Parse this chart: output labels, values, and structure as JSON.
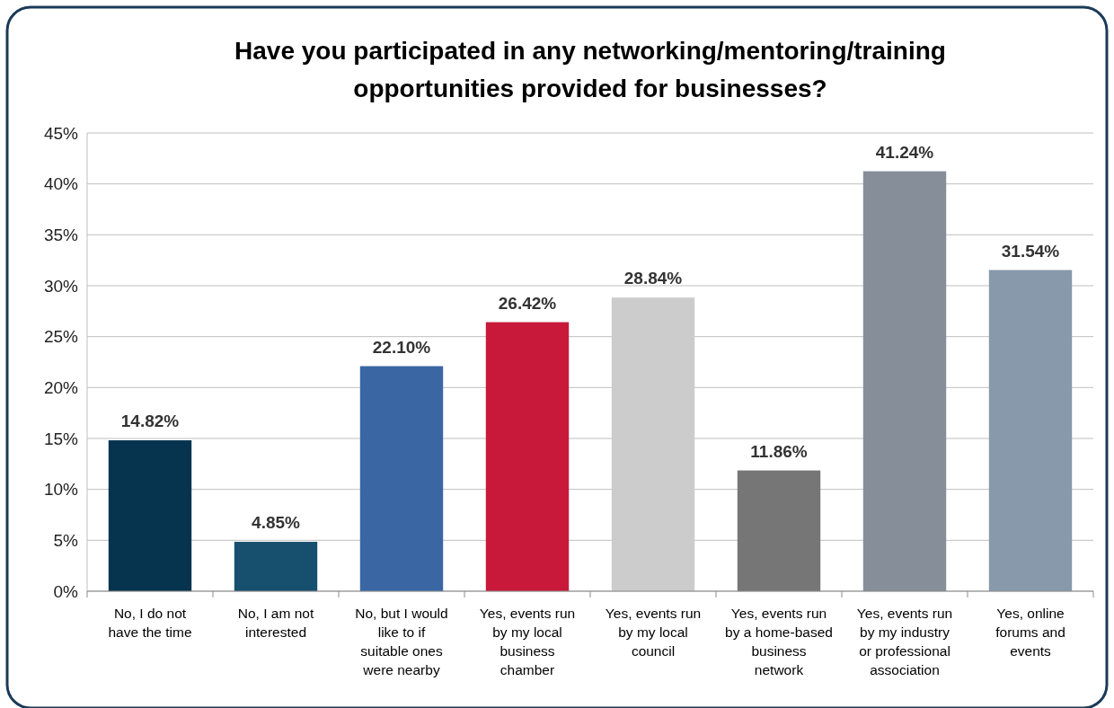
{
  "chart_data": {
    "type": "bar",
    "title": "Have you participated in any networking/mentoring/training opportunities provided for businesses?",
    "categories": [
      "No, I do not have the time",
      "No, I am not interested",
      "No, but I would like to if suitable ones were nearby",
      "Yes, events run by my local business chamber",
      "Yes, events run by my local council",
      "Yes, events run by a home-based business network",
      "Yes, events run by my industry or professional association",
      "Yes, online forums and events"
    ],
    "values": [
      14.82,
      4.85,
      22.1,
      26.42,
      28.84,
      11.86,
      41.24,
      31.54
    ],
    "value_labels": [
      "14.82%",
      "4.85%",
      "22.10%",
      "26.42%",
      "28.84%",
      "11.86%",
      "41.24%",
      "31.54%"
    ],
    "colors": [
      "#06344f",
      "#174f6f",
      "#3a67a3",
      "#c8193a",
      "#cccccc",
      "#767676",
      "#868e99",
      "#8799ab"
    ],
    "ylim": [
      0,
      45
    ],
    "yticks": [
      {
        "value": 0,
        "label": "0%"
      },
      {
        "value": 5,
        "label": "5%"
      },
      {
        "value": 10,
        "label": "10%"
      },
      {
        "value": 15,
        "label": "15%"
      },
      {
        "value": 20,
        "label": "20%"
      },
      {
        "value": 25,
        "label": "25%"
      },
      {
        "value": 30,
        "label": "30%"
      },
      {
        "value": 35,
        "label": "35%"
      },
      {
        "value": 40,
        "label": "40%"
      },
      {
        "value": 45,
        "label": "45%"
      }
    ],
    "grid": "y"
  }
}
